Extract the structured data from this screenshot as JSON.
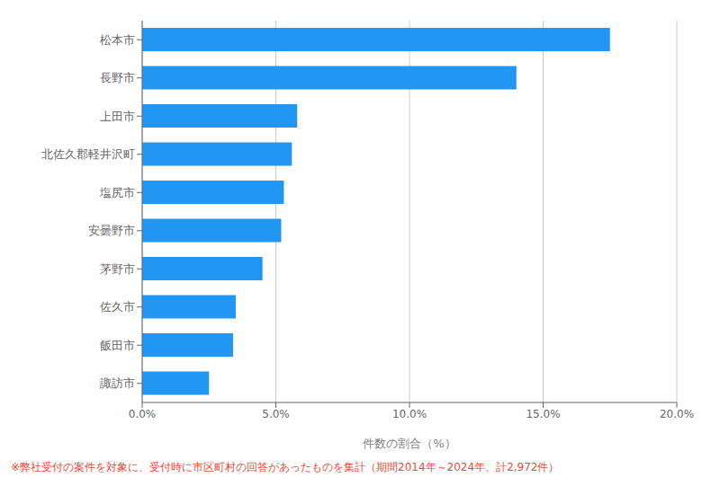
{
  "chart_data": {
    "type": "bar",
    "orientation": "horizontal",
    "categories": [
      "松本市",
      "長野市",
      "上田市",
      "北佐久郡軽井沢町",
      "塩尻市",
      "安曇野市",
      "茅野市",
      "佐久市",
      "飯田市",
      "諏訪市"
    ],
    "values": [
      17.5,
      14.0,
      5.8,
      5.6,
      5.3,
      5.2,
      4.5,
      3.5,
      3.4,
      2.5
    ],
    "color": "#2196F3",
    "x_label": "件数の割合（%）",
    "xlim": [
      0,
      20.0
    ],
    "xticks": [
      {
        "value": 0,
        "label": "0.0%"
      },
      {
        "value": 5,
        "label": "5.0%"
      },
      {
        "value": 10,
        "label": "10.0%"
      },
      {
        "value": 15,
        "label": "15.0%"
      },
      {
        "value": 20,
        "label": "20.0%"
      }
    ],
    "grid": true,
    "annotations": [
      {
        "text": "※弊社受付の案件を対象に、受付時に市区町村の回答があったものを集計（期間2014年～2024年、計2,972件）",
        "color": "#e74c3c"
      }
    ]
  }
}
